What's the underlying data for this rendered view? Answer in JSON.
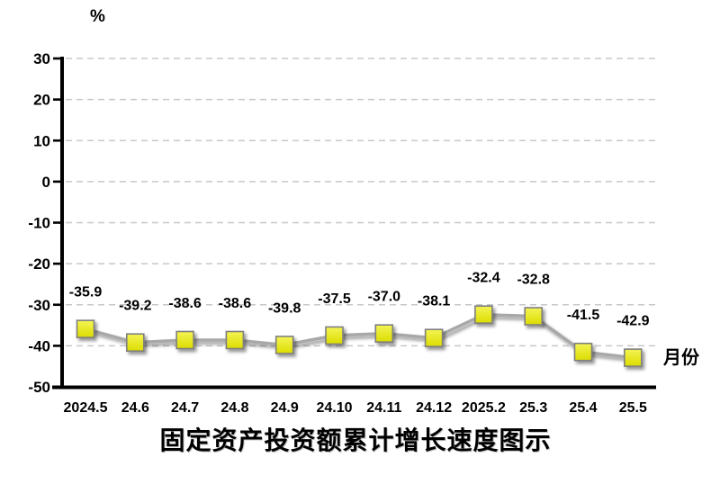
{
  "chart_data": {
    "type": "line",
    "title": "固定资产投资额累计增长速度图示",
    "y_unit_label": "%",
    "x_unit_label": "月份",
    "categories": [
      "2024.5",
      "24.6",
      "24.7",
      "24.8",
      "24.9",
      "24.10",
      "24.11",
      "24.12",
      "2025.2",
      "25.3",
      "25.4",
      "25.5"
    ],
    "series": [
      {
        "name": "固定资产投资额累计增长速度",
        "values": [
          -35.9,
          -39.2,
          -38.6,
          -38.6,
          -39.8,
          -37.5,
          -37.0,
          -38.1,
          -32.4,
          -32.8,
          -41.5,
          -42.9
        ]
      }
    ],
    "data_labels": [
      "-35.9",
      "-39.2",
      "-38.6",
      "-38.6",
      "-39.8",
      "-37.5",
      "-37.0",
      "-38.1",
      "-32.4",
      "-32.8",
      "-41.5",
      "-42.9"
    ],
    "ylim": [
      -50,
      30
    ],
    "ytick_step": 10,
    "ytick_labels": [
      "30",
      "20",
      "10",
      "0",
      "-10",
      "-20",
      "-30",
      "-40",
      "-50"
    ],
    "grid": "horizontal-dashed",
    "legend": "none",
    "marker": "square",
    "colors": {
      "line": "#a8a8a8",
      "marker_fill_top": "#f4f455",
      "marker_fill_bottom": "#dcdc00",
      "marker_border": "#7f7f7f",
      "grid": "#c8c8c8",
      "axis": "#000000",
      "text": "#000000"
    }
  }
}
